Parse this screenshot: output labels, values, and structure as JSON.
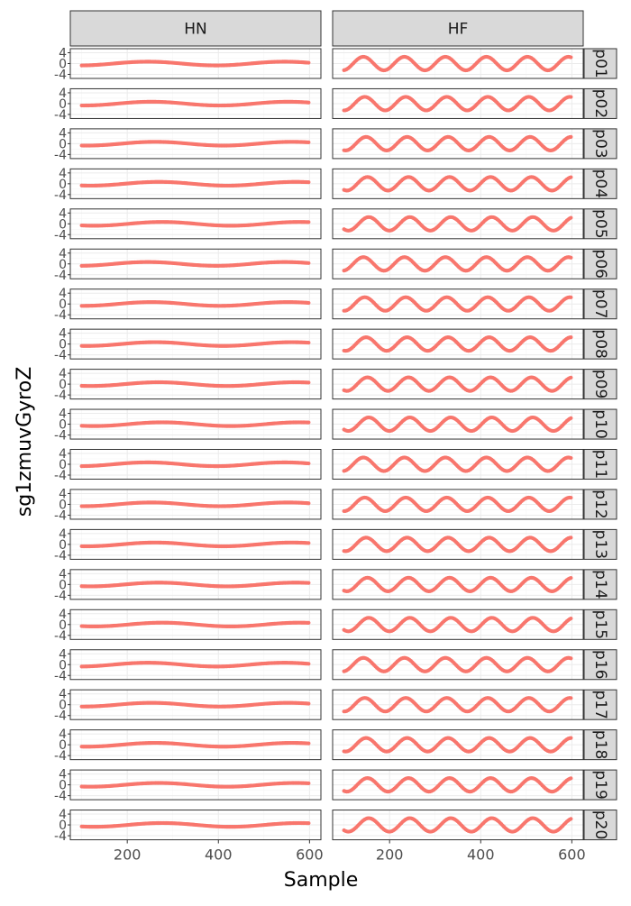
{
  "chart_data": {
    "type": "scatter",
    "xlabel": "Sample",
    "ylabel": "sg1zmuvGyroZ",
    "columns": [
      "HN",
      "HF"
    ],
    "rows": [
      "p01",
      "p02",
      "p03",
      "p04",
      "p05",
      "p06",
      "p07",
      "p08",
      "p09",
      "p10",
      "p11",
      "p12",
      "p13",
      "p14",
      "p15",
      "p16",
      "p17",
      "p18",
      "p19",
      "p20"
    ],
    "xlim": [
      75,
      625
    ],
    "ylim": [
      -5.5,
      5.5
    ],
    "x_ticks": [
      200,
      400,
      600
    ],
    "y_ticks": [
      4,
      0,
      -4
    ],
    "y_tick_labels": [
      "4",
      "0",
      "-4"
    ],
    "grid": true,
    "point_color": "#F8766D",
    "x_range": [
      100,
      600
    ],
    "panels": {
      "HN": {
        "shape": "slow wave",
        "amplitude": 0.7,
        "period_samples": 300,
        "phase_samples": 170
      },
      "HF": {
        "shape": "fast wave",
        "amplitude": 2.5,
        "period_samples": 90,
        "phase_samples": 120
      }
    }
  }
}
